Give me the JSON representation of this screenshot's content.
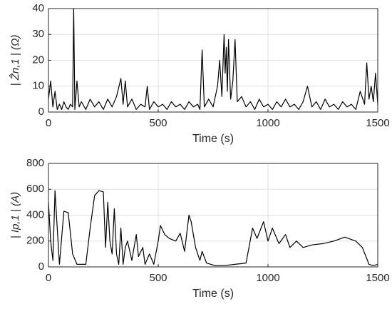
{
  "chart_data": [
    {
      "type": "line",
      "xlabel": "Time (s)",
      "ylabel": "| Ẑn,1 | (Ω)",
      "color": "#000000",
      "grid": true,
      "xlim": [
        0,
        1500
      ],
      "xticks": [
        0,
        500,
        1000,
        1500
      ],
      "ylim": [
        0,
        40
      ],
      "yticks": [
        0,
        10,
        20,
        30,
        40
      ],
      "x": [
        0,
        10,
        20,
        30,
        40,
        50,
        60,
        70,
        80,
        90,
        100,
        110,
        115,
        120,
        130,
        140,
        150,
        170,
        190,
        210,
        230,
        250,
        270,
        290,
        310,
        330,
        340,
        350,
        360,
        380,
        400,
        420,
        440,
        450,
        460,
        480,
        500,
        520,
        540,
        560,
        580,
        600,
        620,
        640,
        660,
        680,
        690,
        700,
        710,
        730,
        750,
        770,
        780,
        790,
        800,
        805,
        810,
        815,
        820,
        830,
        840,
        850,
        860,
        880,
        900,
        920,
        940,
        960,
        980,
        1000,
        1020,
        1040,
        1060,
        1080,
        1100,
        1120,
        1140,
        1160,
        1180,
        1200,
        1220,
        1240,
        1260,
        1280,
        1300,
        1320,
        1340,
        1360,
        1380,
        1400,
        1420,
        1440,
        1450,
        1460,
        1470,
        1480,
        1490,
        1500
      ],
      "values": [
        5,
        12,
        2,
        8,
        1,
        3,
        1,
        4,
        2,
        1,
        3,
        2,
        40,
        1,
        12,
        2,
        4,
        1,
        5,
        2,
        4,
        1,
        5,
        2,
        6,
        13,
        3,
        12,
        2,
        5,
        1,
        3,
        2,
        10,
        1,
        4,
        2,
        3,
        1,
        4,
        2,
        3,
        1,
        4,
        2,
        3,
        1,
        24,
        2,
        5,
        2,
        10,
        20,
        6,
        30,
        15,
        25,
        8,
        28,
        5,
        12,
        28,
        4,
        6,
        2,
        4,
        1,
        5,
        2,
        3,
        1,
        4,
        2,
        5,
        2,
        3,
        1,
        4,
        10,
        2,
        4,
        1,
        5,
        2,
        3,
        1,
        4,
        2,
        3,
        1,
        8,
        3,
        19,
        5,
        10,
        4,
        15,
        3
      ]
    },
    {
      "type": "line",
      "xlabel": "Time (s)",
      "ylabel": "| Ip,1 | (A)",
      "color": "#000000",
      "grid": true,
      "xlim": [
        0,
        1500
      ],
      "xticks": [
        0,
        500,
        1000,
        1500
      ],
      "ylim": [
        0,
        800
      ],
      "yticks": [
        0,
        200,
        400,
        600,
        800
      ],
      "x": [
        0,
        10,
        20,
        30,
        40,
        50,
        70,
        90,
        110,
        130,
        170,
        190,
        210,
        230,
        250,
        260,
        270,
        280,
        290,
        300,
        310,
        320,
        330,
        340,
        350,
        360,
        380,
        400,
        410,
        430,
        440,
        460,
        480,
        500,
        510,
        530,
        550,
        580,
        600,
        620,
        640,
        650,
        670,
        690,
        700,
        720,
        740,
        760,
        800,
        850,
        900,
        930,
        950,
        980,
        1000,
        1020,
        1050,
        1080,
        1100,
        1130,
        1160,
        1200,
        1250,
        1300,
        1350,
        1400,
        1430,
        1460,
        1480,
        1500
      ],
      "values": [
        500,
        200,
        50,
        590,
        300,
        20,
        430,
        420,
        100,
        20,
        20,
        300,
        550,
        590,
        580,
        150,
        500,
        200,
        100,
        450,
        100,
        20,
        300,
        20,
        150,
        200,
        50,
        250,
        80,
        150,
        20,
        100,
        20,
        200,
        320,
        250,
        220,
        200,
        260,
        120,
        400,
        350,
        150,
        50,
        120,
        30,
        20,
        10,
        10,
        20,
        30,
        300,
        220,
        350,
        200,
        300,
        180,
        250,
        150,
        200,
        150,
        170,
        180,
        200,
        230,
        200,
        150,
        20,
        10,
        20
      ]
    }
  ]
}
